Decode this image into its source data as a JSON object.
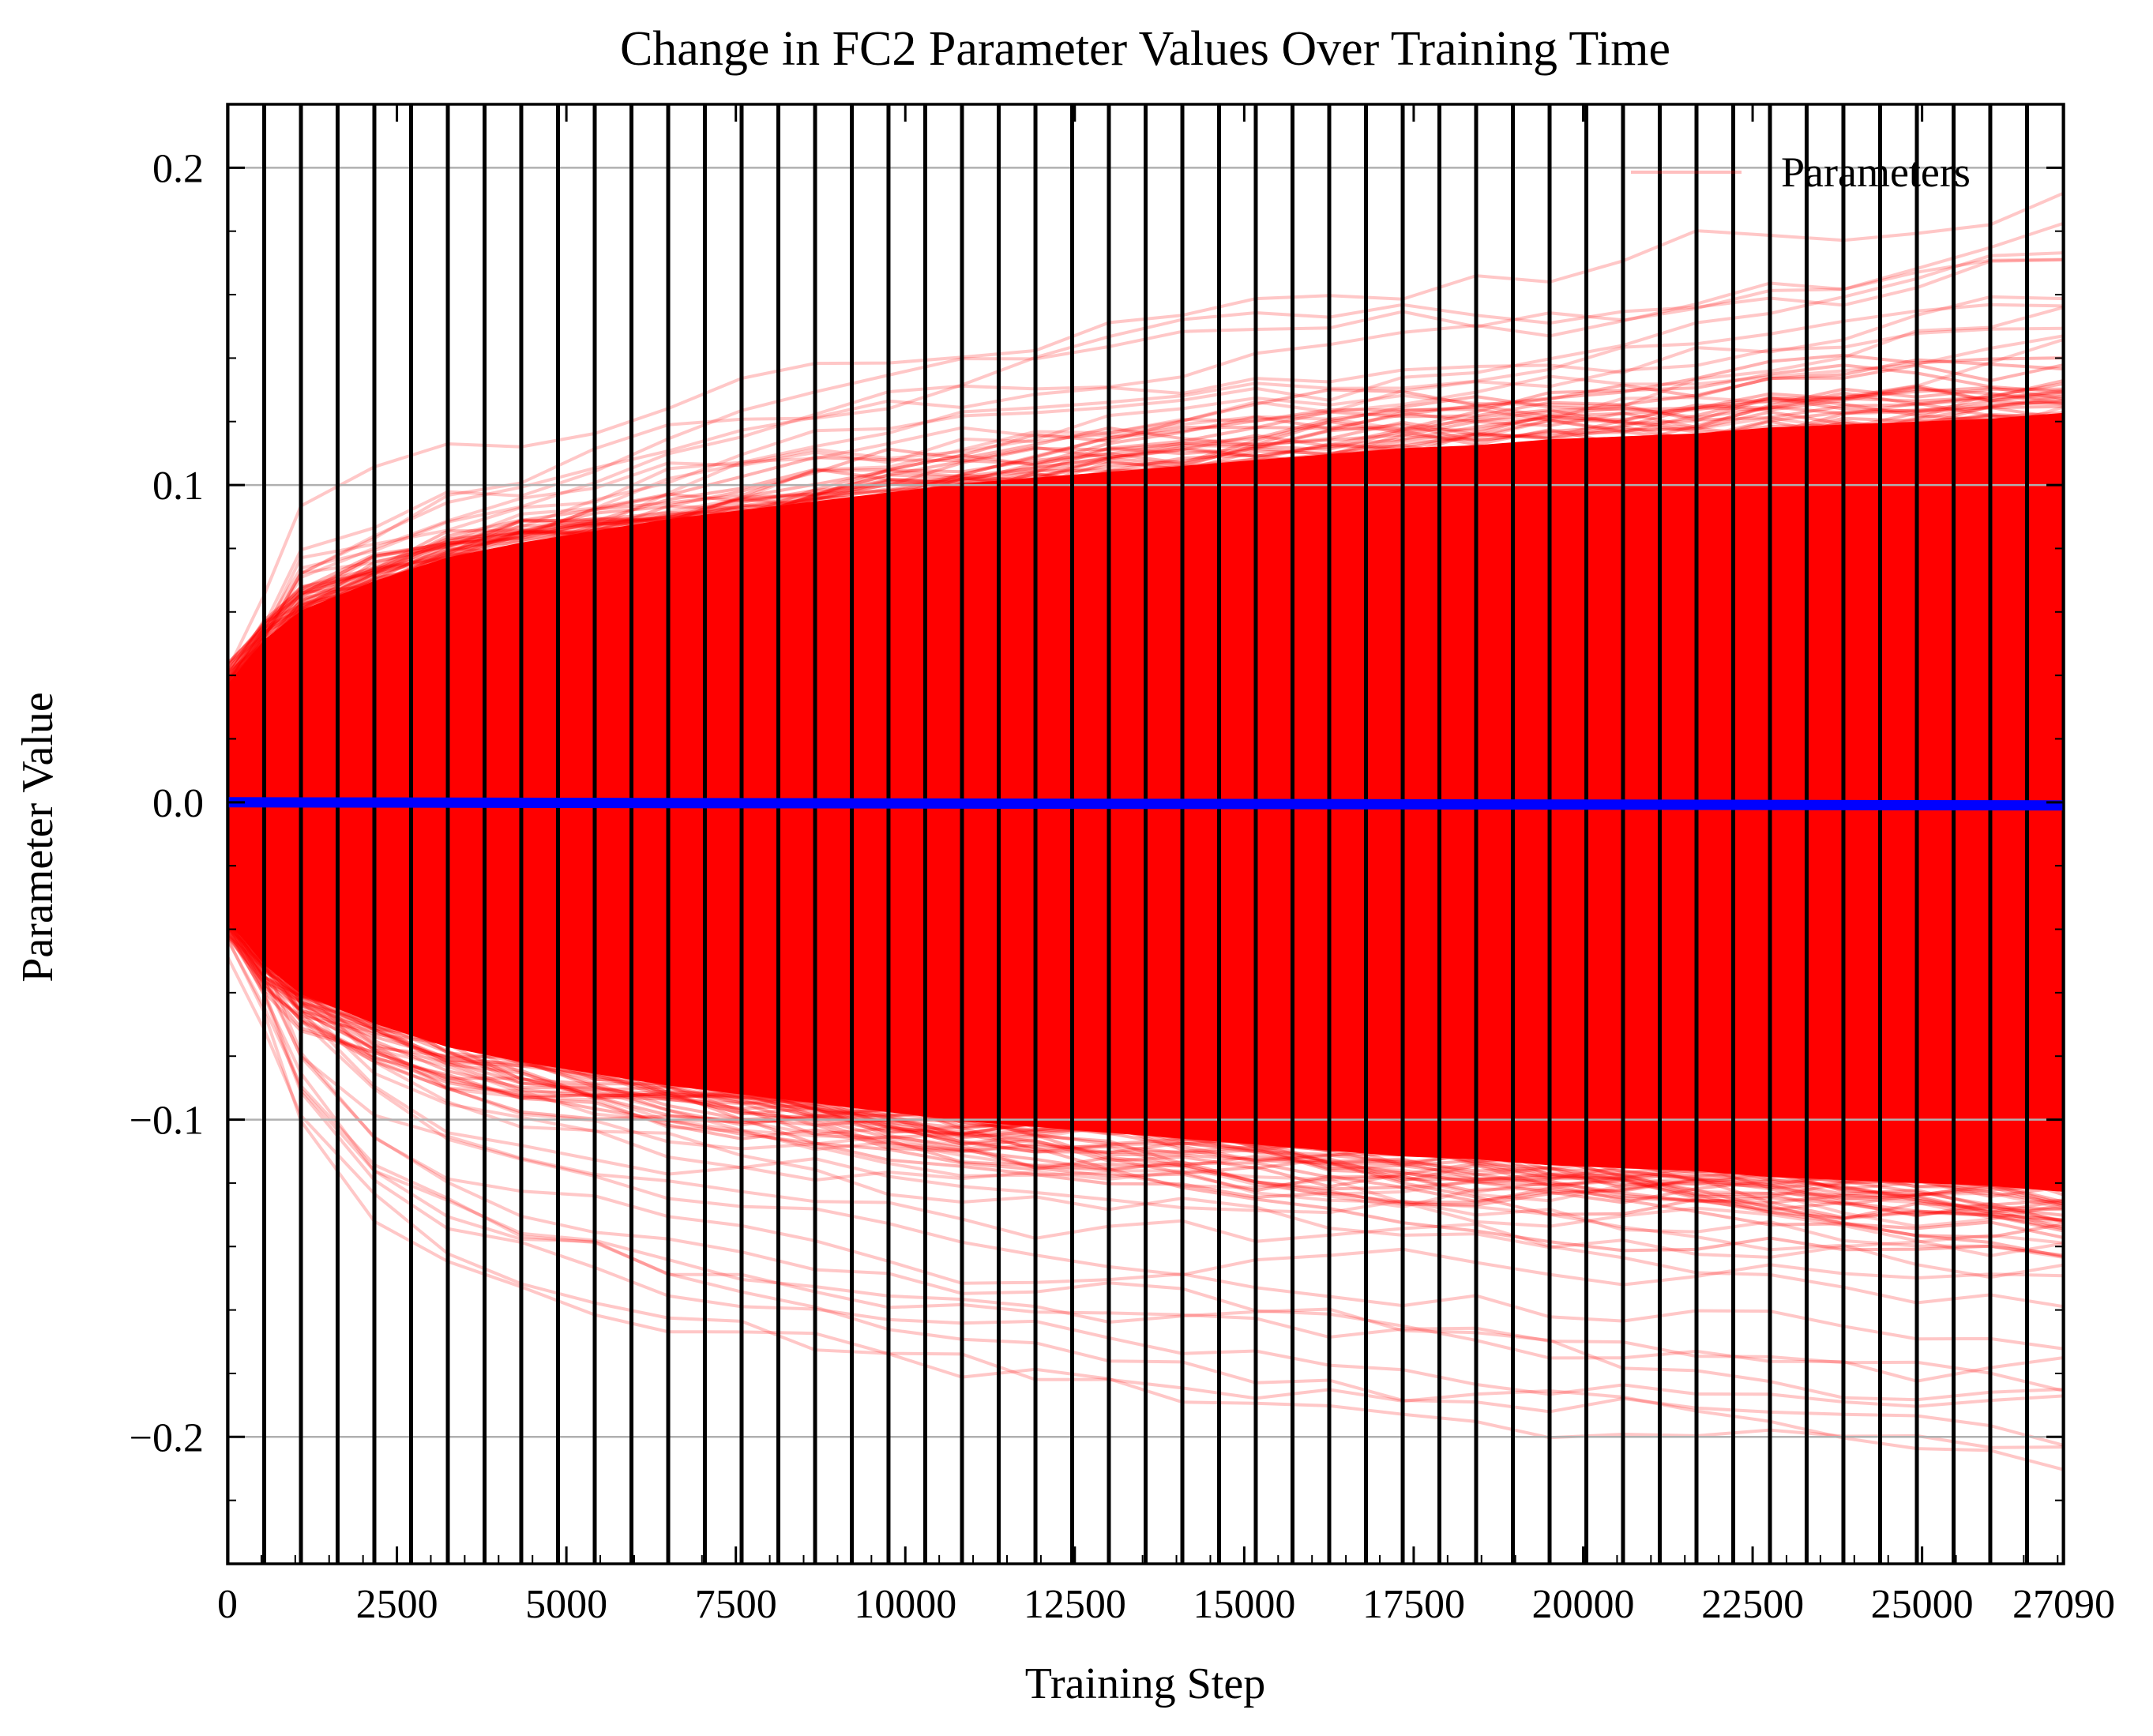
{
  "chart_data": {
    "type": "line",
    "title": "Change in FC2 Parameter Values Over Training Time",
    "xlabel": "Training Step",
    "ylabel": "Parameter Value",
    "xlim": [
      0,
      27090
    ],
    "ylim": [
      -0.24,
      0.22
    ],
    "x_ticks": [
      0,
      2500,
      5000,
      7500,
      10000,
      12500,
      15000,
      17500,
      20000,
      22500,
      25000,
      27090
    ],
    "x_tick_labels": [
      "0",
      "2500",
      "5000",
      "7500",
      "10000",
      "12500",
      "15000",
      "17500",
      "20000",
      "22500",
      "25000",
      "27090"
    ],
    "y_ticks": [
      0.2,
      0.1,
      0.0,
      -0.1,
      -0.2
    ],
    "y_tick_labels": [
      "0.2",
      "0.1",
      "0.0",
      "−0.1",
      "−0.2"
    ],
    "grid": "horizontal",
    "legend": {
      "position": "top-right",
      "entries": [
        "Parameters"
      ]
    },
    "epoch_lines_x": [
      0,
      542,
      1084,
      1625,
      2167,
      2709,
      3251,
      3793,
      4334,
      4876,
      5418,
      5960,
      6502,
      7043,
      7585,
      8127,
      8669,
      9211,
      9752,
      10294,
      10836,
      11378,
      11920,
      12461,
      13003,
      13545,
      14087,
      14629,
      15170,
      15712,
      16254,
      16796,
      17338,
      17879,
      18421,
      18963,
      19505,
      20047,
      20588,
      21130,
      21672,
      22214,
      22756,
      23297,
      23839,
      24381,
      24923,
      25465,
      26006,
      26548,
      27090
    ],
    "mean_series": {
      "x": [
        0,
        27090
      ],
      "y": [
        0.0,
        -0.001
      ]
    },
    "parameter_envelope": {
      "x": [
        0,
        542,
        1084,
        2167,
        3251,
        4334,
        5418,
        6502,
        7585,
        8669,
        9752,
        10836,
        11920,
        13003,
        14087,
        15170,
        16254,
        17338,
        18421,
        19505,
        20588,
        21672,
        22756,
        23839,
        24923,
        26006,
        27090
      ],
      "dense_upper": [
        0.04,
        0.055,
        0.065,
        0.075,
        0.083,
        0.088,
        0.092,
        0.096,
        0.099,
        0.102,
        0.105,
        0.108,
        0.11,
        0.112,
        0.114,
        0.116,
        0.118,
        0.12,
        0.121,
        0.123,
        0.124,
        0.125,
        0.127,
        0.128,
        0.129,
        0.13,
        0.132
      ],
      "dense_lower": [
        -0.04,
        -0.055,
        -0.065,
        -0.075,
        -0.083,
        -0.088,
        -0.092,
        -0.096,
        -0.099,
        -0.102,
        -0.105,
        -0.108,
        -0.11,
        -0.112,
        -0.114,
        -0.116,
        -0.118,
        -0.12,
        -0.121,
        -0.123,
        -0.124,
        -0.125,
        -0.127,
        -0.128,
        -0.129,
        -0.13,
        -0.132
      ],
      "outer_upper": [
        0.045,
        0.065,
        0.09,
        0.1,
        0.11,
        0.115,
        0.122,
        0.13,
        0.138,
        0.142,
        0.145,
        0.15,
        0.155,
        0.158,
        0.162,
        0.165,
        0.166,
        0.168,
        0.17,
        0.172,
        0.175,
        0.18,
        0.182,
        0.185,
        0.19,
        0.195,
        0.2
      ],
      "outer_lower": [
        -0.045,
        -0.07,
        -0.1,
        -0.13,
        -0.145,
        -0.155,
        -0.162,
        -0.168,
        -0.172,
        -0.176,
        -0.18,
        -0.185,
        -0.188,
        -0.19,
        -0.192,
        -0.194,
        -0.196,
        -0.198,
        -0.2,
        -0.203,
        -0.205,
        -0.207,
        -0.209,
        -0.211,
        -0.213,
        -0.215,
        -0.217
      ]
    },
    "colors": {
      "parameters": "#ff0000",
      "mean": "#0000ff",
      "epoch_lines": "#000000",
      "grid": "#b0b0b0"
    }
  }
}
